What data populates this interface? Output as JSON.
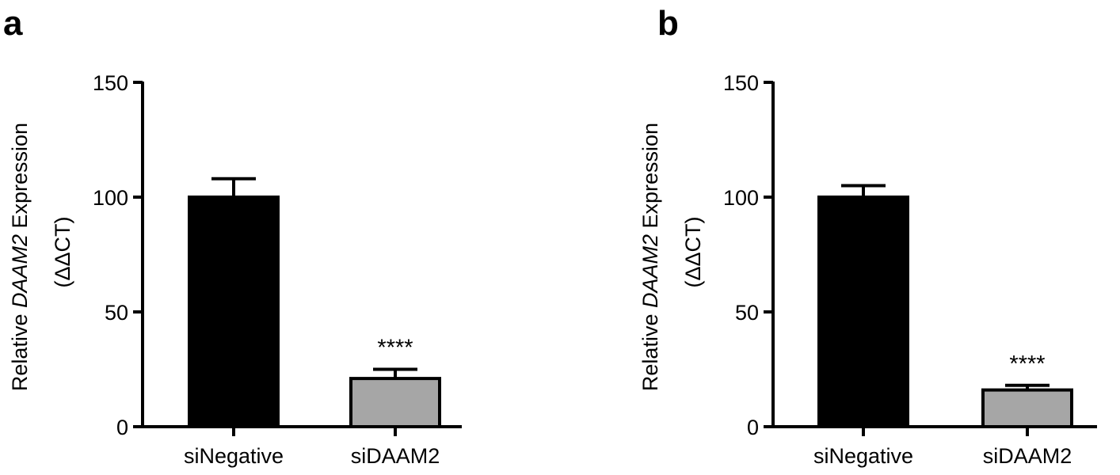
{
  "chart_data": [
    {
      "type": "bar",
      "panel_label": "a",
      "categories": [
        "siNegative",
        "siDAAM2"
      ],
      "values": [
        100,
        21
      ],
      "error_upper": [
        108,
        25
      ],
      "bar_colors": [
        "#000000",
        "#a6a6a6"
      ],
      "annotations": [
        "",
        "****"
      ],
      "ylabel": {
        "prefix": "Relative ",
        "italic": "DAAM2",
        "suffix": " Expression",
        "line2": "(ΔΔCT)"
      },
      "ylim": [
        0,
        150
      ],
      "yticks": [
        0,
        50,
        100,
        150
      ],
      "grid": false
    },
    {
      "type": "bar",
      "panel_label": "b",
      "categories": [
        "siNegative",
        "siDAAM2"
      ],
      "values": [
        100,
        16
      ],
      "error_upper": [
        105,
        18
      ],
      "bar_colors": [
        "#000000",
        "#a6a6a6"
      ],
      "annotations": [
        "",
        "****"
      ],
      "ylabel": {
        "prefix": "Relative ",
        "italic": "DAAM2",
        "suffix": " Expression",
        "line2": "(ΔΔCT)"
      },
      "ylim": [
        0,
        150
      ],
      "yticks": [
        0,
        50,
        100,
        150
      ],
      "grid": false
    }
  ]
}
